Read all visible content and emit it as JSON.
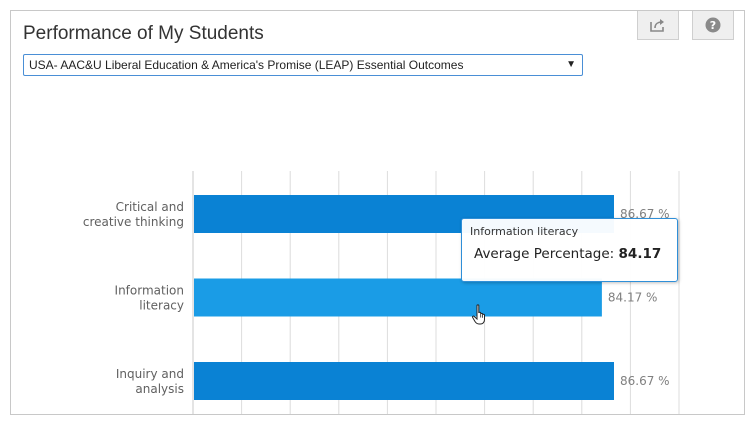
{
  "header": {
    "title": "Performance of My Students",
    "share_icon": "share-icon",
    "help_icon": "help-icon"
  },
  "dropdown": {
    "selected": "USA- AAC&U Liberal Education & America's Promise (LEAP) Essential Outcomes"
  },
  "colors": {
    "bar": "#0a82d4",
    "bar_hover": "#1a9ce6",
    "tooltip_border": "#2f8fd8",
    "dropdown_border": "#4a8fd6"
  },
  "chart_data": {
    "type": "bar",
    "orientation": "horizontal",
    "categories": [
      [
        "Critical and",
        "creative thinking"
      ],
      [
        "Information",
        "literacy"
      ],
      [
        "Inquiry and",
        "analysis"
      ]
    ],
    "values": [
      86.67,
      84.17,
      86.67
    ],
    "value_labels": [
      "86.67 %",
      "84.17 %",
      "86.67 %"
    ],
    "grid": true,
    "highlighted_index": 1
  },
  "tooltip": {
    "series_name": "Information literacy",
    "metric_label": "Average Percentage:",
    "metric_value": "84.17"
  }
}
